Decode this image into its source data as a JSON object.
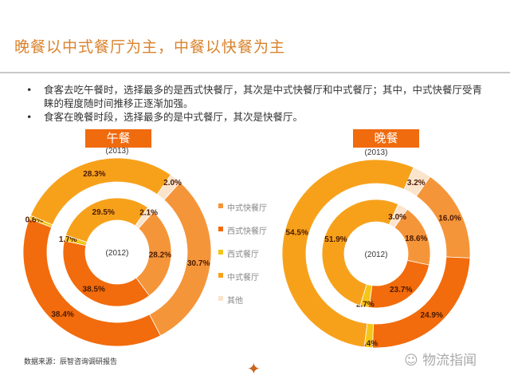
{
  "title": "晚餐以中式餐厅为主，中餐以快餐为主",
  "bullets": [
    "食客去吃午餐时，选择最多的是西式快餐厅，其次是中式快餐厅和中式餐厅；其中，中式快餐厅受青睐的程度随时间推移正逐渐加强。",
    "食客在晚餐时段，选择最多的是中式餐厅，其次是快餐厅。"
  ],
  "source": "数据来源：辰智咨询调研报告",
  "watermark": "物流指闻",
  "colors": {
    "中式快餐厅": "#f5953a",
    "西式快餐厅": "#f26b0c",
    "西式餐厅": "#f5c518",
    "中式餐厅": "#f7a11b",
    "其他": "#fbe4cc"
  },
  "chart_data": [
    {
      "type": "donut",
      "title": "午餐",
      "categories": [
        "中式快餐厅",
        "西式快餐厅",
        "西式餐厅",
        "中式餐厅",
        "其他"
      ],
      "series": [
        {
          "name": "(2013)",
          "ring": "outer",
          "values": [
            30.7,
            38.4,
            0.6,
            28.3,
            2.0
          ],
          "labels": [
            "30.7%",
            "38.4%",
            "0.6%",
            "28.3%",
            "2.0%"
          ]
        },
        {
          "name": "(2012)",
          "ring": "inner",
          "values": [
            28.2,
            38.5,
            1.7,
            29.5,
            2.1
          ],
          "labels": [
            "28.2%",
            "38.5%",
            "1.7%",
            "29.5%",
            "2.1%"
          ]
        }
      ]
    },
    {
      "type": "donut",
      "title": "晚餐",
      "categories": [
        "中式快餐厅",
        "西式快餐厅",
        "西式餐厅",
        "中式餐厅",
        "其他"
      ],
      "series": [
        {
          "name": "(2013)",
          "ring": "outer",
          "values": [
            16.0,
            24.9,
            1.4,
            54.5,
            3.2
          ],
          "labels": [
            "16.0%",
            "24.9%",
            "1.4%",
            "54.5%",
            "3.2%"
          ]
        },
        {
          "name": "(2012)",
          "ring": "inner",
          "values": [
            18.6,
            23.7,
            2.7,
            51.9,
            3.0
          ],
          "labels": [
            "18.6%",
            "23.7%",
            "2.7%",
            "51.9%",
            "3.0%"
          ]
        }
      ]
    }
  ],
  "legend": [
    "中式快餐厅",
    "西式快餐厅",
    "西式餐厅",
    "中式餐厅",
    "其他"
  ]
}
